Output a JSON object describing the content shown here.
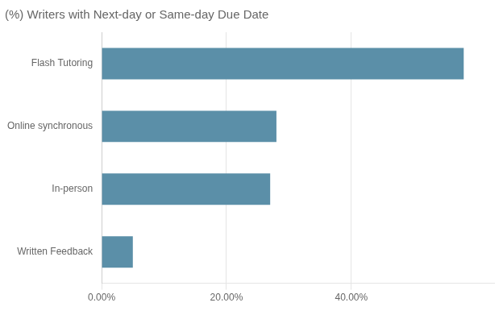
{
  "chart_data": {
    "type": "bar",
    "orientation": "horizontal",
    "title": "(%) Writers with Next-day or Same-day Due Date",
    "categories": [
      "Written Feedback",
      "In-person",
      "Online synchronous",
      "Flash Tutoring"
    ],
    "values": [
      0.05,
      0.27,
      0.28,
      0.58
    ],
    "color": "#5b8fa8",
    "xlim": [
      0,
      0.63
    ],
    "xticks": [
      {
        "value": 0.0,
        "label": "0.00%"
      },
      {
        "value": 0.2,
        "label": "20.00%"
      },
      {
        "value": 0.4,
        "label": "40.00%"
      }
    ],
    "grid": true
  }
}
